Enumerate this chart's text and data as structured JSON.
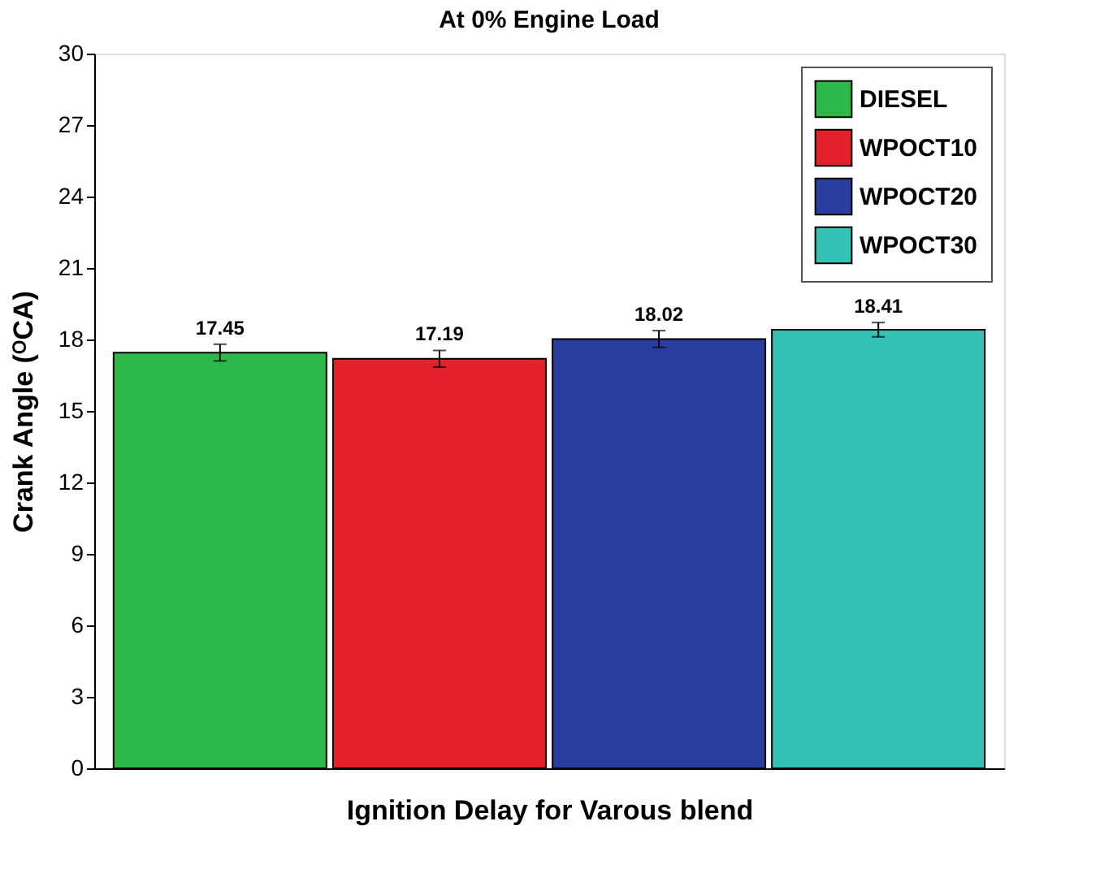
{
  "chart_data": {
    "type": "bar",
    "title": "At 0% Engine Load",
    "xlabel": "Ignition Delay for Varous blend",
    "ylabel": "Crank Angle (ᴼCA)",
    "categories": [
      null
    ],
    "series": [
      {
        "name": "DIESEL",
        "color": "#2db84a",
        "values": [
          17.45
        ],
        "errors": [
          0.35
        ]
      },
      {
        "name": "WPOCT10",
        "color": "#e4202a",
        "values": [
          17.19
        ],
        "errors": [
          0.35
        ]
      },
      {
        "name": "WPOCT20",
        "color": "#2a3ea0",
        "values": [
          18.02
        ],
        "errors": [
          0.35
        ]
      },
      {
        "name": "WPOCT30",
        "color": "#35c2b4",
        "values": [
          18.41
        ],
        "errors": [
          0.3
        ]
      }
    ],
    "ylim": [
      0,
      30
    ],
    "yticks": [
      0,
      3,
      6,
      9,
      12,
      15,
      18,
      21,
      24,
      27,
      30
    ],
    "data_labels": true,
    "grid": false,
    "legend": "top right",
    "tick_labels": "y"
  }
}
